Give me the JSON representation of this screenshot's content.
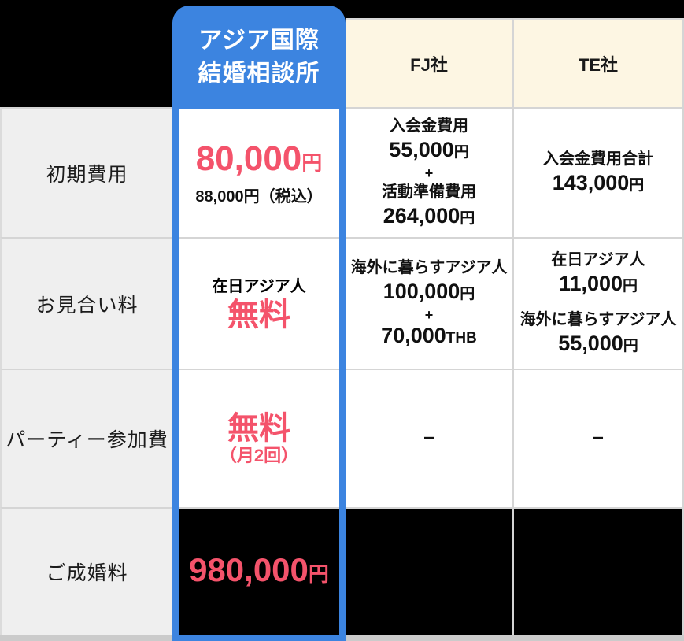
{
  "colors": {
    "accent_blue": "#3C84E0",
    "accent_pink": "#F4536B",
    "header_cream": "#FDF6E3",
    "label_gray": "#EFEFEF",
    "border_gray": "#D5D5D5",
    "black": "#000000"
  },
  "header": {
    "highlighted_title_line1": "アジア国際",
    "highlighted_title_line2": "結婚相談所",
    "competitor1": "FJ社",
    "competitor2": "TE社"
  },
  "rows": [
    {
      "label": "初期費用",
      "own": {
        "price": "80,000",
        "unit": "円",
        "note": "88,000円（税込）"
      },
      "fj": {
        "label1": "入会金費用",
        "value1": "55,000",
        "unit1": "円",
        "plus": "+",
        "label2": "活動準備費用",
        "value2": "264,000",
        "unit2": "円"
      },
      "te": {
        "label1": "入会金費用合計",
        "value1": "143,000",
        "unit1": "円"
      }
    },
    {
      "label": "お見合い料",
      "own": {
        "label1": "在日アジア人",
        "free": "無料"
      },
      "fj": {
        "label1": "海外に暮らすアジア人",
        "value1": "100,000",
        "unit1": "円",
        "plus": "+",
        "value2": "70,000",
        "unit2": "THB"
      },
      "te": {
        "label1": "在日アジア人",
        "value1": "11,000",
        "unit1": "円",
        "label2": "海外に暮らすアジア人",
        "value2": "55,000",
        "unit2": "円"
      }
    },
    {
      "label": "パーティー参加費",
      "own": {
        "free": "無料",
        "note": "（月2回）"
      },
      "fj": {
        "dash": "−"
      },
      "te": {
        "dash": "−"
      }
    },
    {
      "label": "ご成婚料",
      "own": {
        "price": "980,000",
        "unit": "円"
      }
    }
  ],
  "chart_data": {
    "type": "table",
    "columns": [
      "",
      "アジア国際結婚相談所",
      "FJ社",
      "TE社"
    ],
    "rows": [
      [
        "初期費用",
        "80,000円 88,000円（税込）",
        "入会金費用 55,000円 + 活動準備費用 264,000円",
        "入会金費用合計 143,000円"
      ],
      [
        "お見合い料",
        "在日アジア人 無料",
        "海外に暮らすアジア人 100,000円 + 70,000THB",
        "在日アジア人 11,000円 海外に暮らすアジア人 55,000円"
      ],
      [
        "パーティー参加費",
        "無料（月2回）",
        "−",
        "−"
      ],
      [
        "ご成婚料",
        "980,000円",
        "",
        ""
      ]
    ]
  }
}
